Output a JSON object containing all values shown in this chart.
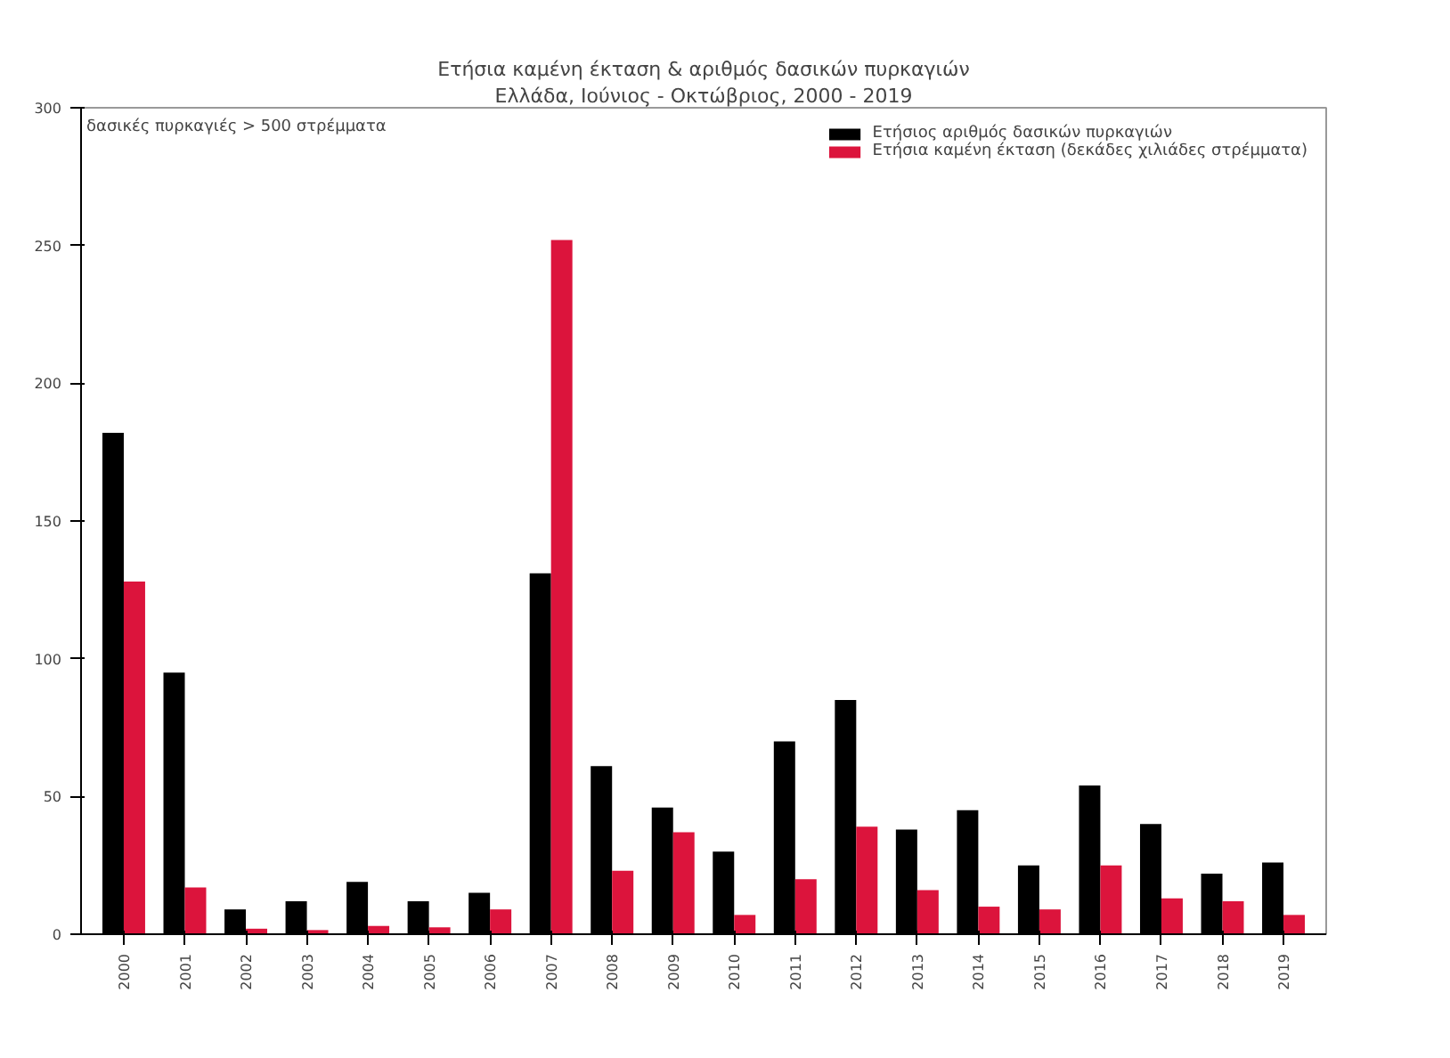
{
  "chart_data": {
    "type": "bar",
    "title": "Ετήσια καμένη έκταση & αριθμός δασικών πυρκαγιών",
    "subtitle": "Ελλάδα, Ιούνιος - Οκτώβριος, 2000 - 2019",
    "annotations": [
      "δασικές πυρκαγιές > 500 στρέμματα"
    ],
    "categories": [
      "2000",
      "2001",
      "2002",
      "2003",
      "2004",
      "2005",
      "2006",
      "2007",
      "2008",
      "2009",
      "2010",
      "2011",
      "2012",
      "2013",
      "2014",
      "2015",
      "2016",
      "2017",
      "2018",
      "2019"
    ],
    "series": [
      {
        "name": "Ετήσιος αριθμός δασικών πυρκαγιών",
        "color": "#000000",
        "values": [
          182,
          95,
          9,
          12,
          19,
          12,
          15,
          131,
          61,
          46,
          30,
          70,
          85,
          38,
          45,
          25,
          54,
          40,
          22,
          26
        ]
      },
      {
        "name": "Ετήσια καμένη έκταση (δεκάδες χιλιάδες στρέμματα)",
        "color": "#dc143c",
        "values": [
          128,
          17,
          2,
          1.5,
          3,
          2.5,
          9,
          252,
          23,
          37,
          7,
          20,
          39,
          16,
          10,
          9,
          25,
          13,
          12,
          7
        ]
      }
    ],
    "ylim": [
      0,
      300
    ],
    "yticks": [
      0,
      50,
      100,
      150,
      200,
      250,
      300
    ],
    "legend": "top right"
  }
}
